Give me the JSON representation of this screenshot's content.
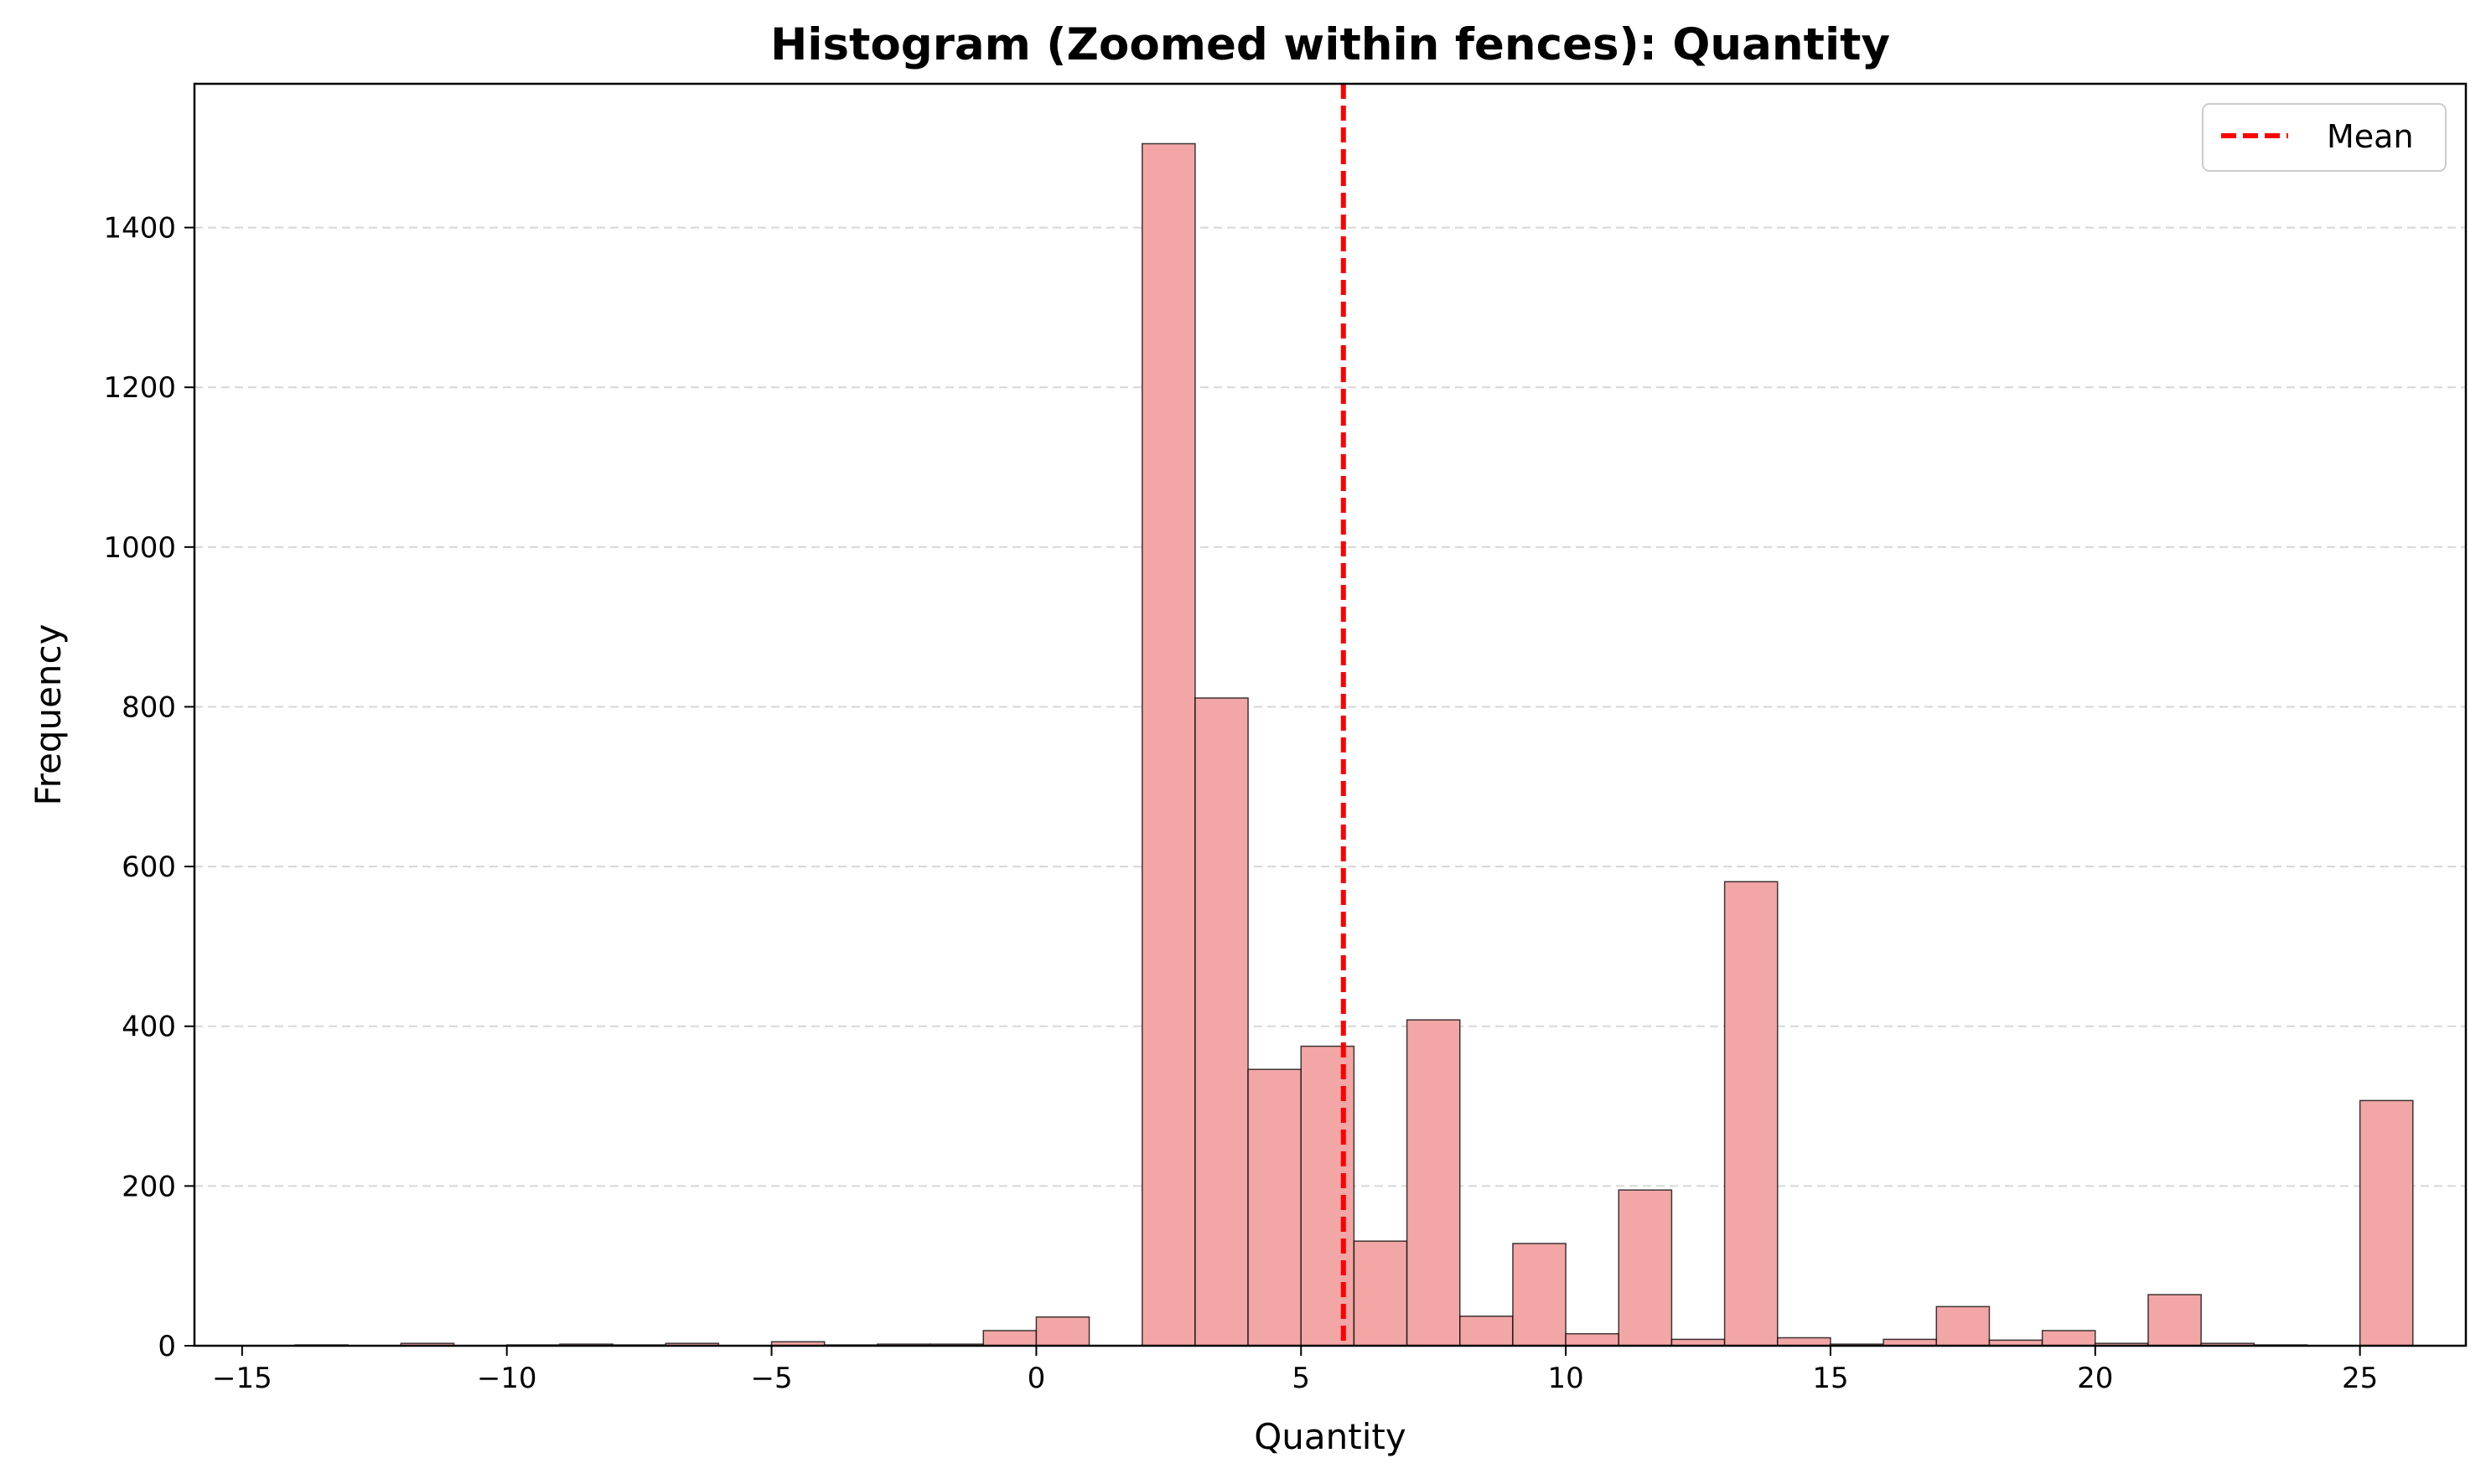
{
  "chart_data": {
    "type": "bar",
    "title": "Histogram (Zoomed within fences): Quantity",
    "xlabel": "Quantity",
    "ylabel": "Frequency",
    "xlim": [
      -15.9,
      27.0
    ],
    "ylim": [
      0,
      1580
    ],
    "xticks": [
      -15,
      -10,
      -5,
      0,
      5,
      10,
      15,
      20,
      25
    ],
    "xtick_labels": [
      "−15",
      "−10",
      "−5",
      "0",
      "5",
      "10",
      "15",
      "20",
      "25"
    ],
    "yticks": [
      0,
      200,
      400,
      600,
      800,
      1000,
      1200,
      1400
    ],
    "ytick_labels": [
      "0",
      "200",
      "400",
      "600",
      "800",
      "1000",
      "1200",
      "1400"
    ],
    "grid": {
      "axis": "y",
      "style": "dashed"
    },
    "bin_start": -15.0,
    "bin_width": 1.0,
    "values": [
      0,
      1,
      0,
      3,
      0,
      1,
      2,
      1,
      3,
      0,
      5,
      1,
      2,
      2,
      19,
      36,
      0,
      1505,
      811,
      346,
      375,
      131,
      408,
      37,
      128,
      15,
      195,
      8,
      581,
      10,
      2,
      8,
      49,
      7,
      19,
      3,
      64,
      3,
      1,
      0,
      307
    ],
    "bar_color": "#f2a6a6",
    "bar_edge_color": "#000000",
    "mean": 5.8,
    "mean_color": "#ff0000",
    "legend": {
      "label": "Mean",
      "position": "upper right"
    }
  }
}
